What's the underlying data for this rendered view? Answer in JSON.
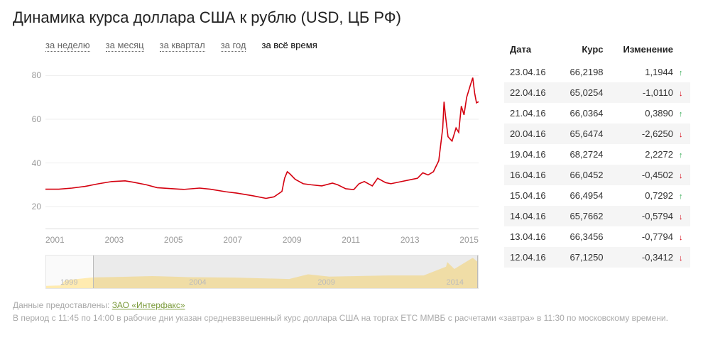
{
  "title": "Динамика курса доллара США к рублю (USD, ЦБ РФ)",
  "tabs": [
    {
      "label": "за неделю",
      "active": false
    },
    {
      "label": "за месяц",
      "active": false
    },
    {
      "label": "за квартал",
      "active": false
    },
    {
      "label": "за год",
      "active": false
    },
    {
      "label": "за всё время",
      "active": true
    }
  ],
  "chart": {
    "type": "line",
    "series_color": "#d4000f",
    "line_width": 1.6,
    "background_color": "#ffffff",
    "grid_color": "#eeeeee",
    "axis_text_color": "#999999",
    "xlim": [
      2000,
      2016.3
    ],
    "ylim": [
      10,
      85
    ],
    "yticks": [
      20,
      40,
      60,
      80
    ],
    "xticks": [
      2001,
      2003,
      2005,
      2007,
      2009,
      2011,
      2013,
      2015
    ],
    "axis_fontsize": 12,
    "points": [
      [
        2000.0,
        28
      ],
      [
        2000.5,
        28
      ],
      [
        2001.0,
        28.5
      ],
      [
        2001.5,
        29.3
      ],
      [
        2002.0,
        30.5
      ],
      [
        2002.5,
        31.5
      ],
      [
        2003.0,
        31.8
      ],
      [
        2003.3,
        31.2
      ],
      [
        2003.8,
        30.0
      ],
      [
        2004.2,
        28.7
      ],
      [
        2004.8,
        28.2
      ],
      [
        2005.2,
        27.9
      ],
      [
        2005.8,
        28.5
      ],
      [
        2006.2,
        28.0
      ],
      [
        2006.8,
        26.8
      ],
      [
        2007.2,
        26.2
      ],
      [
        2007.8,
        25.0
      ],
      [
        2008.3,
        23.8
      ],
      [
        2008.6,
        24.5
      ],
      [
        2008.9,
        27.0
      ],
      [
        2009.0,
        33.0
      ],
      [
        2009.1,
        36.0
      ],
      [
        2009.2,
        35.0
      ],
      [
        2009.4,
        32.5
      ],
      [
        2009.7,
        30.5
      ],
      [
        2010.0,
        30.0
      ],
      [
        2010.4,
        29.5
      ],
      [
        2010.8,
        30.8
      ],
      [
        2011.0,
        30.0
      ],
      [
        2011.3,
        28.2
      ],
      [
        2011.6,
        27.8
      ],
      [
        2011.8,
        30.5
      ],
      [
        2012.0,
        31.5
      ],
      [
        2012.3,
        29.5
      ],
      [
        2012.5,
        33.0
      ],
      [
        2012.8,
        31.0
      ],
      [
        2013.0,
        30.5
      ],
      [
        2013.4,
        31.5
      ],
      [
        2013.8,
        32.5
      ],
      [
        2014.0,
        33.0
      ],
      [
        2014.2,
        35.5
      ],
      [
        2014.4,
        34.5
      ],
      [
        2014.6,
        36.0
      ],
      [
        2014.8,
        41.0
      ],
      [
        2014.95,
        56.0
      ],
      [
        2015.0,
        68.0
      ],
      [
        2015.05,
        62.0
      ],
      [
        2015.15,
        52.0
      ],
      [
        2015.3,
        50.0
      ],
      [
        2015.45,
        56.0
      ],
      [
        2015.55,
        54.0
      ],
      [
        2015.65,
        66.0
      ],
      [
        2015.75,
        62.0
      ],
      [
        2015.85,
        70.0
      ],
      [
        2016.0,
        76.0
      ],
      [
        2016.08,
        79.0
      ],
      [
        2016.15,
        72.0
      ],
      [
        2016.22,
        67.5
      ],
      [
        2016.3,
        68.0
      ]
    ]
  },
  "overview": {
    "fill_color": "#ffe7a3",
    "border_color": "#e5e5e5",
    "background_color": "#fafafa",
    "tick_color": "#bbbbbb",
    "xlim": [
      1998,
      2016.3
    ],
    "ticks": [
      1999,
      2004,
      2009,
      2014
    ],
    "selection": [
      2000,
      2016.3
    ],
    "points": [
      [
        1998.0,
        6
      ],
      [
        1998.6,
        7
      ],
      [
        1998.8,
        20
      ],
      [
        1999.0,
        22
      ],
      [
        1999.5,
        25
      ],
      [
        2000.0,
        28
      ],
      [
        2001.0,
        29
      ],
      [
        2002.5,
        31.5
      ],
      [
        2004.0,
        28.7
      ],
      [
        2006.0,
        27.5
      ],
      [
        2008.3,
        23.8
      ],
      [
        2009.1,
        36
      ],
      [
        2010.0,
        30
      ],
      [
        2012.5,
        33
      ],
      [
        2014.0,
        33
      ],
      [
        2014.95,
        56
      ],
      [
        2015.0,
        68
      ],
      [
        2015.3,
        50
      ],
      [
        2016.08,
        79
      ],
      [
        2016.3,
        68
      ]
    ],
    "ylim": [
      0,
      85
    ]
  },
  "table": {
    "headers": [
      "Дата",
      "Курс",
      "Изменение"
    ],
    "row_alt_bg": "#f5f5f5",
    "up_color": "#2fa84f",
    "down_color": "#d4000f",
    "rows": [
      {
        "date": "23.04.16",
        "rate": "66,2198",
        "change": "1,1944",
        "dir": "up"
      },
      {
        "date": "22.04.16",
        "rate": "65,0254",
        "change": "-1,0110",
        "dir": "down"
      },
      {
        "date": "21.04.16",
        "rate": "66,0364",
        "change": "0,3890",
        "dir": "up"
      },
      {
        "date": "20.04.16",
        "rate": "65,6474",
        "change": "-2,6250",
        "dir": "down"
      },
      {
        "date": "19.04.16",
        "rate": "68,2724",
        "change": "2,2272",
        "dir": "up"
      },
      {
        "date": "16.04.16",
        "rate": "66,0452",
        "change": "-0,4502",
        "dir": "down"
      },
      {
        "date": "15.04.16",
        "rate": "66,4954",
        "change": "0,7292",
        "dir": "up"
      },
      {
        "date": "14.04.16",
        "rate": "65,7662",
        "change": "-0,5794",
        "dir": "down"
      },
      {
        "date": "13.04.16",
        "rate": "66,3456",
        "change": "-0,7794",
        "dir": "down"
      },
      {
        "date": "12.04.16",
        "rate": "67,1250",
        "change": "-0,3412",
        "dir": "down"
      }
    ]
  },
  "footer": {
    "prefix": "Данные предоставлены: ",
    "link_text": "ЗАО «Интерфакс»",
    "line2": "В период с 11:45 по 14:00 в рабочие дни указан средневзвешенный курс доллара США на торгах ЕТС ММВБ с расчетами «завтра» в 11:30 по московскому времени."
  }
}
